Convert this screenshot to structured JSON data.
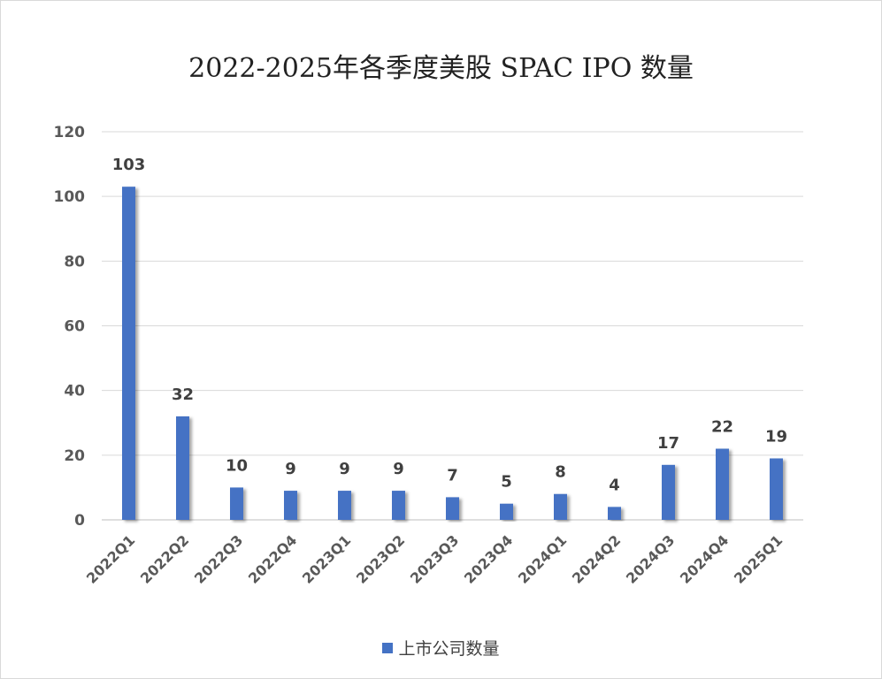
{
  "chart_data": {
    "type": "bar",
    "title": "2022-2025年各季度美股 SPAC IPO 数量",
    "categories": [
      "2022Q1",
      "2022Q2",
      "2022Q3",
      "2022Q4",
      "2023Q1",
      "2023Q2",
      "2023Q3",
      "2023Q4",
      "2024Q1",
      "2024Q2",
      "2024Q3",
      "2024Q4",
      "2025Q1"
    ],
    "series": [
      {
        "name": "上市公司数量",
        "values": [
          103,
          32,
          10,
          9,
          9,
          9,
          7,
          5,
          8,
          4,
          17,
          22,
          19
        ]
      }
    ],
    "ylim": [
      0,
      120
    ],
    "yticks": [
      0,
      20,
      40,
      60,
      80,
      100,
      120
    ],
    "grid": true,
    "legend_position": "bottom",
    "bar_color": "#4472C4"
  }
}
